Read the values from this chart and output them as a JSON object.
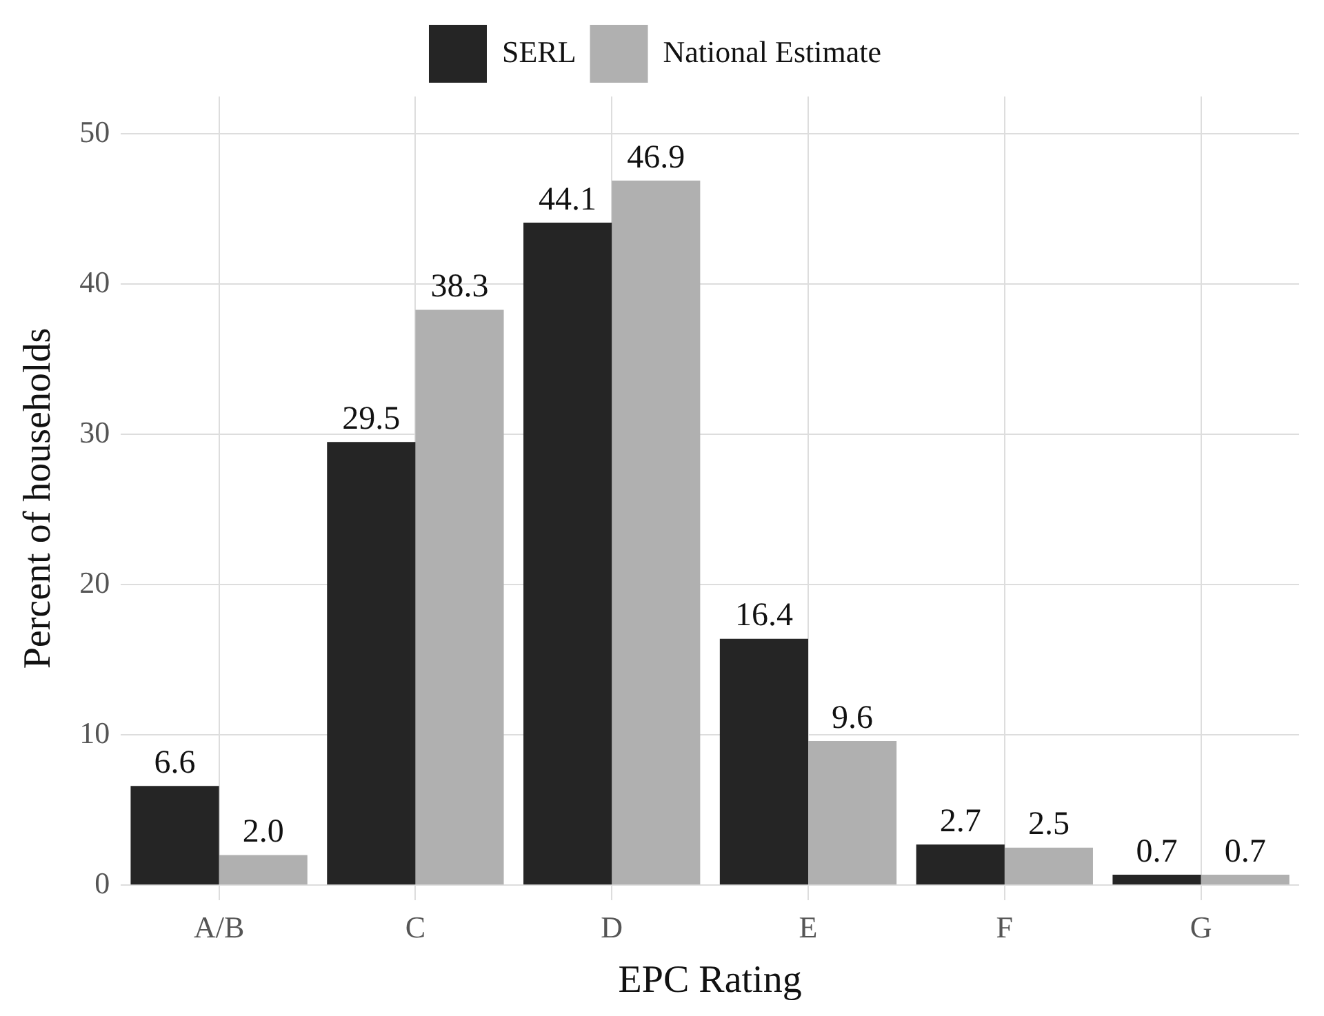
{
  "chart_data": {
    "type": "bar",
    "xlabel": "EPC Rating",
    "ylabel": "Percent of households",
    "categories": [
      "A/B",
      "C",
      "D",
      "E",
      "F",
      "G"
    ],
    "series": [
      {
        "name": "SERL",
        "color": "#252525",
        "values": [
          6.6,
          29.5,
          44.1,
          16.4,
          2.7,
          0.7
        ],
        "value_labels": [
          "6.6",
          "29.5",
          "44.1",
          "16.4",
          "2.7",
          "0.7"
        ]
      },
      {
        "name": "National Estimate",
        "color": "#b0b0b0",
        "values": [
          2.0,
          38.3,
          46.9,
          9.6,
          2.5,
          0.7
        ],
        "value_labels": [
          "2.0",
          "38.3",
          "46.9",
          "9.6",
          "2.5",
          "0.7"
        ]
      }
    ],
    "ylim": [
      -1,
      52.5
    ],
    "yticks": [
      0,
      10,
      20,
      30,
      40,
      50
    ],
    "grid": true,
    "legend": "top"
  }
}
